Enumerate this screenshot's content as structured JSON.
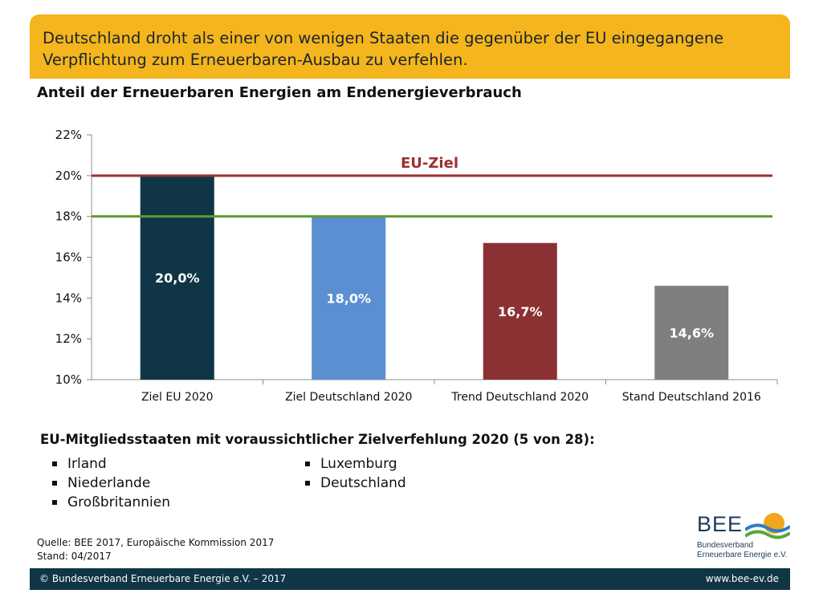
{
  "banner": {
    "text": "Deutschland droht als einer von wenigen Staaten die gegenüber der EU eingegangene Verpflichtung zum Erneuerbaren-Ausbau zu verfehlen."
  },
  "chart_data": {
    "type": "bar",
    "title": "Anteil der Erneuerbaren Energien am Endenergieverbrauch",
    "categories": [
      "Ziel EU 2020",
      "Ziel Deutschland 2020",
      "Trend Deutschland 2020",
      "Stand Deutschland 2016"
    ],
    "values": [
      20.0,
      18.0,
      16.7,
      14.6
    ],
    "value_labels": [
      "20,0%",
      "18,0%",
      "16,7%",
      "14,6%"
    ],
    "bar_colors": [
      "#0f3547",
      "#5b8fd1",
      "#8c3133",
      "#7f7f7f"
    ],
    "ylim": [
      10,
      22
    ],
    "yticks": [
      "10%",
      "12%",
      "14%",
      "16%",
      "18%",
      "20%",
      "22%"
    ],
    "xlabel": "",
    "ylabel": "",
    "reference_lines": [
      {
        "value": 20.0,
        "label": "EU-Ziel",
        "color": "#9e2f31"
      },
      {
        "value": 18.0,
        "label": "",
        "color": "#5e9a35"
      }
    ],
    "grid": false
  },
  "member_states": {
    "title": "EU-Mitgliedsstaaten mit voraussichtlicher Zielverfehlung 2020 (5 von 28):",
    "column_a": [
      "Irland",
      "Niederlande",
      "Großbritannien"
    ],
    "column_b": [
      "Luxemburg",
      "Deutschland"
    ]
  },
  "source": {
    "line1": "Quelle: BEE 2017, Europäische Kommission 2017",
    "line2": "Stand: 04/2017"
  },
  "logo": {
    "name": "BEE",
    "sub1": "Bundesverband",
    "sub2": "Erneuerbare Energie e.V."
  },
  "footer": {
    "left": "© Bundesverband Erneuerbare Energie e.V. – 2017",
    "right": "www.bee-ev.de"
  }
}
